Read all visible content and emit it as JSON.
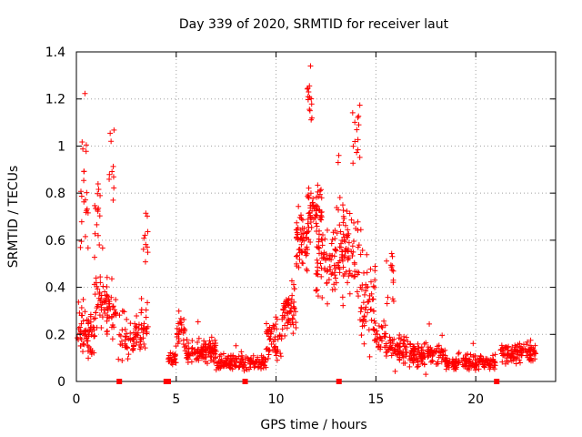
{
  "chart_data": {
    "type": "scatter",
    "title": "Day 339 of 2020, SRMTID for receiver laut",
    "xlabel": "GPS time / hours",
    "ylabel": "SRMTID / TECUs",
    "xlim": [
      0,
      24
    ],
    "ylim": [
      0,
      1.4
    ],
    "x_ticks": [
      0,
      5,
      10,
      15,
      20
    ],
    "x_tick_labels": [
      "0",
      "5",
      "10",
      "15",
      "20"
    ],
    "y_ticks": [
      0,
      0.2,
      0.4,
      0.6,
      0.8,
      1.0,
      1.2,
      1.4
    ],
    "y_tick_labels": [
      "0",
      "0.2",
      "0.4",
      "0.6",
      "0.8",
      "1",
      "1.2",
      "1.4"
    ],
    "grid": true,
    "marker": "+",
    "color": "#ff0000",
    "axis_markers_x": [
      2.15,
      4.5,
      4.6,
      8.45,
      13.15,
      21.05
    ],
    "segments": [
      {
        "x_range": [
          0.0,
          0.9
        ],
        "y_level": 0.2,
        "y_spread": 0.09,
        "n": 70
      },
      {
        "x_range": [
          0.2,
          0.6
        ],
        "y_level": 0.8,
        "y_spread": 0.35,
        "n": 22
      },
      {
        "x_range": [
          0.9,
          1.6
        ],
        "y_level": 0.34,
        "y_spread": 0.12,
        "n": 55
      },
      {
        "x_range": [
          0.9,
          1.2
        ],
        "y_level": 0.72,
        "y_spread": 0.18,
        "n": 14
      },
      {
        "x_range": [
          1.6,
          2.0
        ],
        "y_level": 0.3,
        "y_spread": 0.08,
        "n": 25
      },
      {
        "x_range": [
          1.6,
          1.9
        ],
        "y_level": 0.9,
        "y_spread": 0.28,
        "n": 10
      },
      {
        "x_range": [
          2.1,
          3.2
        ],
        "y_level": 0.18,
        "y_spread": 0.08,
        "n": 60
      },
      {
        "x_range": [
          3.2,
          3.6
        ],
        "y_level": 0.22,
        "y_spread": 0.1,
        "n": 25
      },
      {
        "x_range": [
          3.3,
          3.6
        ],
        "y_level": 0.6,
        "y_spread": 0.12,
        "n": 10
      },
      {
        "x_range": [
          4.6,
          5.0
        ],
        "y_level": 0.1,
        "y_spread": 0.04,
        "n": 25
      },
      {
        "x_range": [
          5.0,
          5.5
        ],
        "y_level": 0.2,
        "y_spread": 0.06,
        "n": 30
      },
      {
        "x_range": [
          5.5,
          7.0
        ],
        "y_level": 0.12,
        "y_spread": 0.05,
        "n": 110
      },
      {
        "x_range": [
          7.0,
          9.5
        ],
        "y_level": 0.08,
        "y_spread": 0.03,
        "n": 150
      },
      {
        "x_range": [
          9.5,
          10.3
        ],
        "y_level": 0.17,
        "y_spread": 0.07,
        "n": 55
      },
      {
        "x_range": [
          10.3,
          11.0
        ],
        "y_level": 0.3,
        "y_spread": 0.09,
        "n": 60
      },
      {
        "x_range": [
          11.0,
          11.6
        ],
        "y_level": 0.58,
        "y_spread": 0.12,
        "n": 60
      },
      {
        "x_range": [
          11.5,
          11.8
        ],
        "y_level": 1.2,
        "y_spread": 0.12,
        "n": 14
      },
      {
        "x_range": [
          11.6,
          12.3
        ],
        "y_level": 0.72,
        "y_spread": 0.12,
        "n": 60
      },
      {
        "x_range": [
          12.0,
          13.0
        ],
        "y_level": 0.5,
        "y_spread": 0.14,
        "n": 70
      },
      {
        "x_range": [
          13.0,
          14.2
        ],
        "y_level": 0.55,
        "y_spread": 0.18,
        "n": 90
      },
      {
        "x_range": [
          13.8,
          14.2
        ],
        "y_level": 1.05,
        "y_spread": 0.15,
        "n": 14
      },
      {
        "x_range": [
          14.2,
          15.0
        ],
        "y_level": 0.38,
        "y_spread": 0.18,
        "n": 55
      },
      {
        "x_range": [
          14.9,
          15.5
        ],
        "y_level": 0.2,
        "y_spread": 0.07,
        "n": 30
      },
      {
        "x_range": [
          15.5,
          15.9
        ],
        "y_level": 0.45,
        "y_spread": 0.12,
        "n": 14
      },
      {
        "x_range": [
          15.5,
          16.8
        ],
        "y_level": 0.13,
        "y_spread": 0.06,
        "n": 80
      },
      {
        "x_range": [
          16.8,
          18.5
        ],
        "y_level": 0.11,
        "y_spread": 0.05,
        "n": 110
      },
      {
        "x_range": [
          18.5,
          21.0
        ],
        "y_level": 0.08,
        "y_spread": 0.03,
        "n": 140
      },
      {
        "x_range": [
          21.2,
          23.0
        ],
        "y_level": 0.12,
        "y_spread": 0.04,
        "n": 110
      }
    ]
  }
}
